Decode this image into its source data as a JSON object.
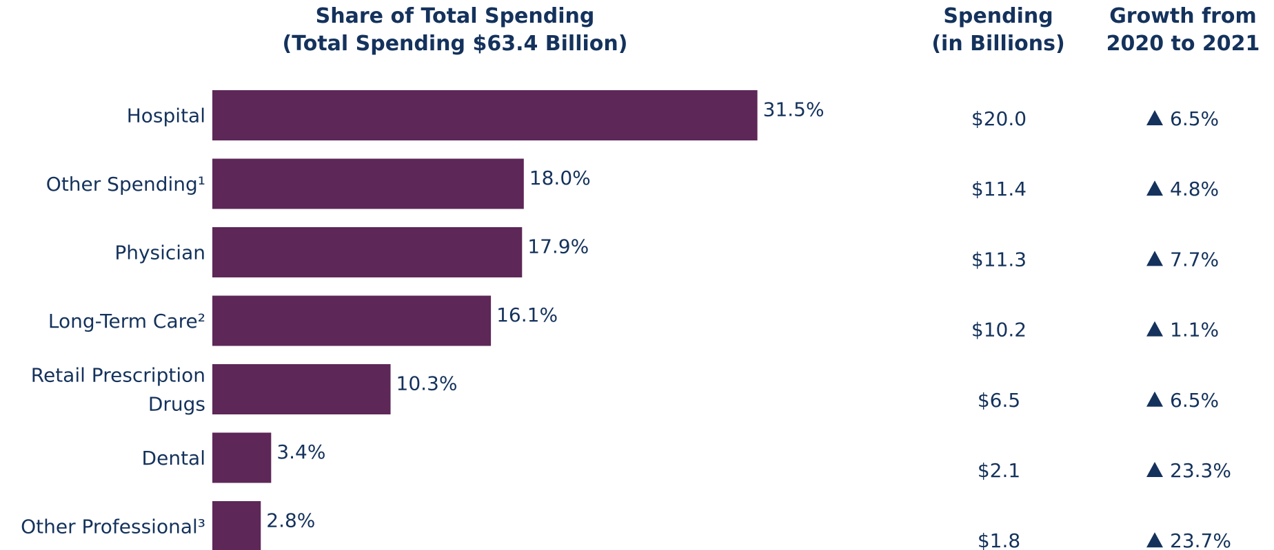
{
  "header": {
    "share_line1": "Share of Total Spending",
    "share_line2": "(Total Spending $63.4 Billion)",
    "spend_line1": "Spending",
    "spend_line2": "(in Billions)",
    "growth_line1": "Growth from",
    "growth_line2": "2020 to 2021"
  },
  "colors": {
    "bar": "#5d2758",
    "text": "#14325c"
  },
  "growth_icon": "triangle-up-icon",
  "chart_data": {
    "type": "bar",
    "orientation": "horizontal",
    "title": "Share of Total Spending",
    "subtitle": "(Total Spending $63.4 Billion)",
    "categories": [
      [
        "Hospital"
      ],
      [
        "Other Spending¹"
      ],
      [
        "Physician"
      ],
      [
        "Long-Term Care²"
      ],
      [
        "Retail Prescription",
        "Drugs"
      ],
      [
        "Dental"
      ],
      [
        "Other Professional³"
      ]
    ],
    "values": [
      31.5,
      18.0,
      17.9,
      16.1,
      10.3,
      3.4,
      2.8
    ],
    "value_labels": [
      "31.5%",
      "18.0%",
      "17.9%",
      "16.1%",
      "10.3%",
      "3.4%",
      "2.8%"
    ],
    "spending": [
      "$20.0",
      "$11.4",
      "$11.3",
      "$10.2",
      "$6.5",
      "$2.1",
      "$1.8"
    ],
    "growth": [
      "6.5%",
      "4.8%",
      "7.7%",
      "1.1%",
      "6.5%",
      "23.3%",
      "23.7%"
    ],
    "xlim": [
      0,
      35
    ],
    "grid": false,
    "legend": "none"
  }
}
